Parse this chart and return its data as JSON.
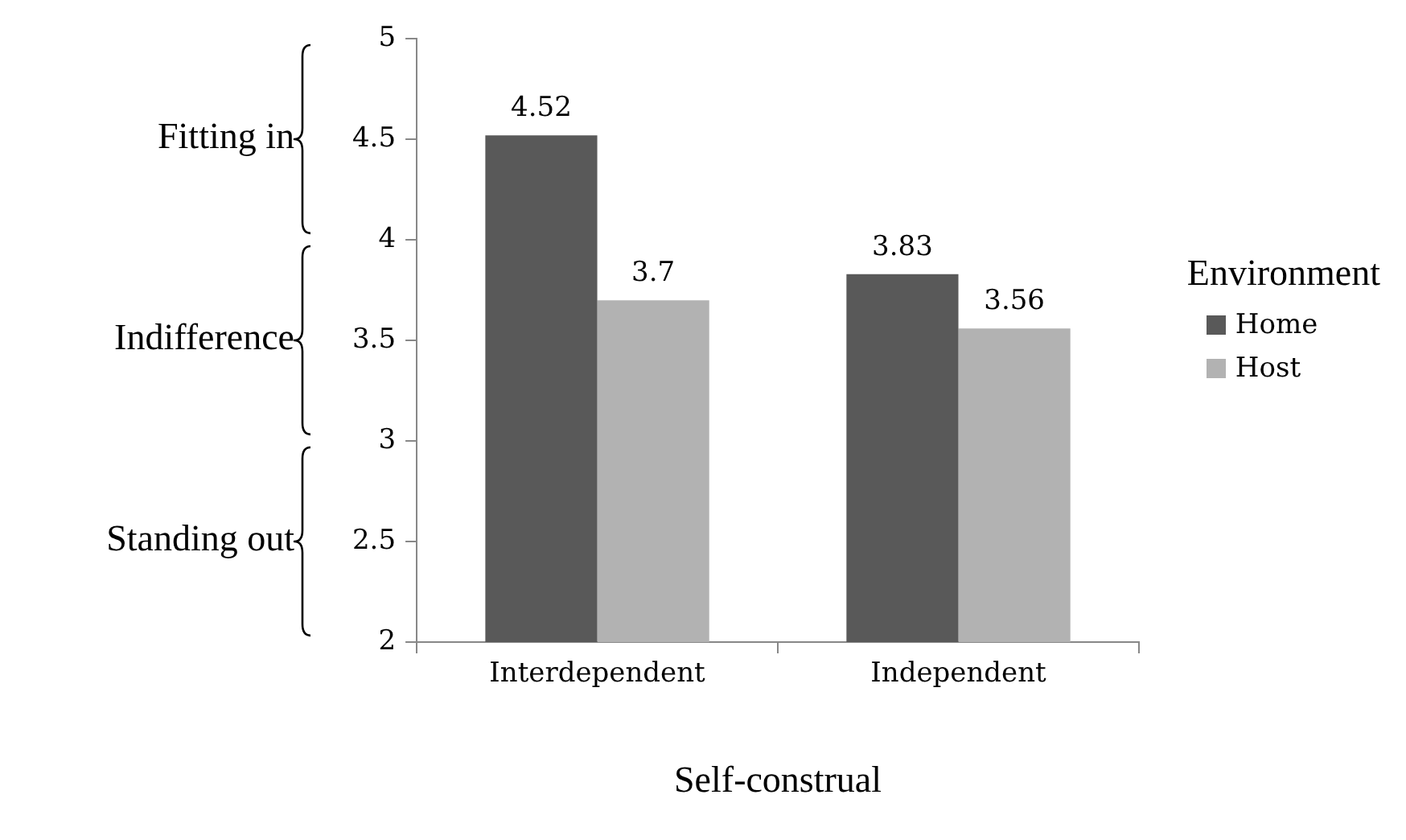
{
  "chart_data": {
    "type": "bar",
    "xlabel": "Self-construal",
    "legend_title": "Environment",
    "categories": [
      "Interdependent",
      "Independent"
    ],
    "series": [
      {
        "name": "Home",
        "color": "#595959",
        "values": [
          4.52,
          3.83
        ]
      },
      {
        "name": "Host",
        "color": "#b2b2b2",
        "values": [
          3.7,
          3.56
        ]
      }
    ],
    "ylim": [
      2,
      5
    ],
    "yticks": [
      2,
      2.5,
      3,
      3.5,
      4,
      4.5,
      5
    ],
    "data_labels": true,
    "legend": "right",
    "grid": false,
    "annotations": [
      "Fitting in",
      "Indifference",
      "Standing out"
    ]
  }
}
